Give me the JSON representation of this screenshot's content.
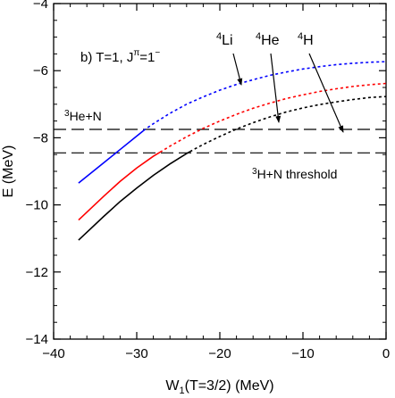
{
  "chart_data": {
    "type": "line",
    "xlabel_main": "W",
    "xlabel_sub": "1",
    "xlabel_rest": "(T=3/2)  (MeV)",
    "ylabel": "E (MeV)",
    "xlim": [
      -40,
      0
    ],
    "ylim": [
      -14,
      -4
    ],
    "x_ticks": [
      -40,
      -30,
      -20,
      -10,
      0
    ],
    "y_ticks": [
      -14,
      -12,
      -10,
      -8,
      -6,
      -4
    ],
    "x_tick_labels": [
      "−40",
      "−30",
      "−20",
      "−10",
      "0"
    ],
    "y_tick_labels": [
      "−14",
      "−12",
      "−10",
      "−8",
      "−6",
      "−4"
    ],
    "grid": false,
    "panel_label": {
      "prefix": "b) T=1, J",
      "sup": "π",
      "suffix": "=1",
      "sup2": "−"
    },
    "thresholds": [
      {
        "y": -7.75,
        "label_sup": "3",
        "label_rest": "He+N"
      },
      {
        "y": -8.45,
        "label_sup": "3",
        "label_rest": "H+N threshold"
      }
    ],
    "series": [
      {
        "name_sup": "4",
        "name_rest": "Li",
        "color": "#0000ff",
        "x": [
          -37,
          -34,
          -32,
          -30,
          -29,
          -28,
          -26,
          -24,
          -22,
          -20,
          -18,
          -16,
          -14,
          -12,
          -10,
          -8,
          -6,
          -4,
          -2,
          0
        ],
        "y": [
          -9.35,
          -8.75,
          -8.35,
          -7.95,
          -7.75,
          -7.58,
          -7.27,
          -7.0,
          -6.78,
          -6.58,
          -6.41,
          -6.27,
          -6.14,
          -6.04,
          -5.95,
          -5.88,
          -5.82,
          -5.78,
          -5.75,
          -5.73
        ],
        "solid_until": -29.2
      },
      {
        "name_sup": "4",
        "name_rest": "He",
        "color": "#ff0000",
        "x": [
          -37,
          -34,
          -32,
          -30,
          -28,
          -27,
          -26,
          -24,
          -22,
          -20,
          -18,
          -16,
          -14,
          -12,
          -10,
          -8,
          -6,
          -4,
          -2,
          0
        ],
        "y": [
          -10.45,
          -9.75,
          -9.3,
          -8.9,
          -8.55,
          -8.4,
          -8.25,
          -7.97,
          -7.72,
          -7.5,
          -7.3,
          -7.12,
          -6.97,
          -6.83,
          -6.72,
          -6.62,
          -6.54,
          -6.47,
          -6.42,
          -6.38
        ],
        "solid_until": -27.2
      },
      {
        "name_sup": "4",
        "name_rest": "H",
        "color": "#000000",
        "x": [
          -37,
          -34,
          -32,
          -30,
          -28,
          -26,
          -24,
          -23,
          -22,
          -20,
          -18,
          -16,
          -14,
          -12,
          -10,
          -8,
          -6,
          -4,
          -2,
          0
        ],
        "y": [
          -11.05,
          -10.35,
          -9.9,
          -9.5,
          -9.12,
          -8.78,
          -8.47,
          -8.33,
          -8.2,
          -7.96,
          -7.74,
          -7.55,
          -7.38,
          -7.23,
          -7.11,
          -7.01,
          -6.93,
          -6.86,
          -6.8,
          -6.77
        ],
        "solid_until": -23.6
      }
    ]
  }
}
